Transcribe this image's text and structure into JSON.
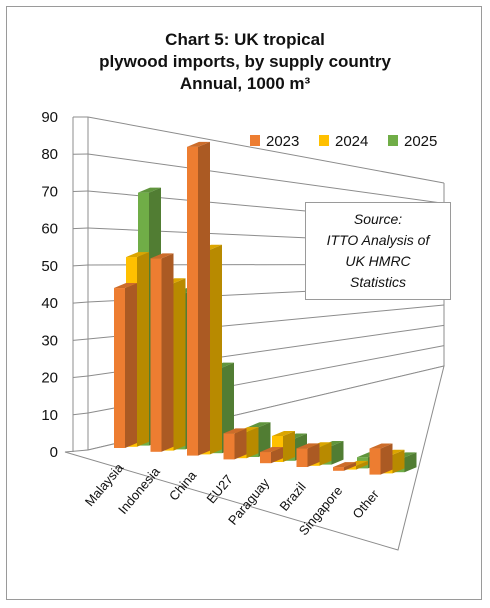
{
  "chart_data": {
    "type": "bar",
    "title": [
      "Chart 5: UK tropical",
      "plywood imports, by supply country",
      "Annual, 1000 m³"
    ],
    "source": [
      "Source:",
      "ITTO Analysis of",
      "UK HMRC",
      "Statistics"
    ],
    "categories": [
      "Malaysia",
      "Indonesia",
      "China",
      "EU27",
      "Paraguay",
      "Brazil",
      "Singapore",
      "Other"
    ],
    "series": [
      {
        "name": "2023",
        "color": "#ED7D31",
        "values": [
          43,
          52,
          83,
          7,
          3,
          5,
          1,
          7
        ]
      },
      {
        "name": "2024",
        "color": "#FFC000",
        "values": [
          51,
          45,
          55,
          7,
          7,
          5,
          1,
          5
        ]
      },
      {
        "name": "2025",
        "color": "#70AD47",
        "values": [
          68,
          42,
          23,
          8,
          6,
          5,
          3,
          4
        ]
      }
    ],
    "yticks": [
      0,
      10,
      20,
      30,
      40,
      50,
      60,
      70,
      80,
      90
    ],
    "ylim": [
      0,
      90
    ],
    "grid": true,
    "legend": "top-right"
  }
}
